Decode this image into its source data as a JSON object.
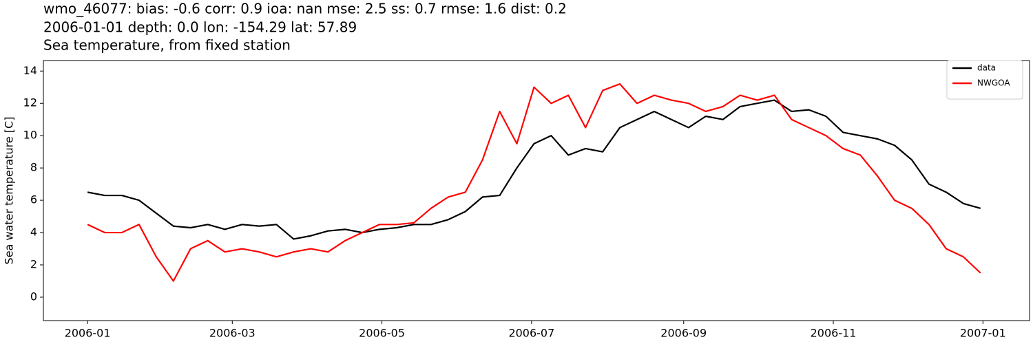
{
  "chart_data": {
    "type": "line",
    "title": "wmo_46077: bias: -0.6  corr: 0.9  ioa: nan  mse: 2.5  ss: 0.7  rmse: 1.6  dist: 0.2",
    "subtitle": "2006-01-01 depth: 0.0 lon: -154.29 lat: 57.89",
    "description": "Sea temperature, from fixed station",
    "y_label": "Sea water temperature [C]",
    "x": [
      0,
      7,
      14,
      21,
      28,
      35,
      42,
      49,
      56,
      63,
      70,
      77,
      84,
      91,
      98,
      105,
      112,
      119,
      126,
      133,
      140,
      147,
      154,
      161,
      168,
      175,
      182,
      189,
      196,
      203,
      210,
      217,
      224,
      231,
      238,
      245,
      252,
      259,
      266,
      273,
      280,
      287,
      294,
      301,
      308,
      315,
      322,
      329,
      336,
      343,
      350,
      357,
      364
    ],
    "series": [
      {
        "name": "data",
        "color": "#000000",
        "values": [
          6.5,
          6.3,
          6.3,
          6.0,
          5.2,
          4.4,
          4.3,
          4.5,
          4.2,
          4.5,
          4.4,
          4.5,
          3.6,
          3.8,
          4.1,
          4.2,
          4.0,
          4.2,
          4.3,
          4.5,
          4.5,
          4.8,
          5.3,
          6.2,
          6.3,
          8.0,
          9.5,
          10.0,
          8.8,
          9.2,
          9.0,
          10.5,
          11.0,
          11.5,
          11.0,
          10.5,
          11.2,
          11.0,
          11.8,
          12.0,
          12.2,
          11.5,
          11.6,
          11.2,
          10.2,
          10.0,
          9.8,
          9.4,
          8.5,
          7.0,
          6.5,
          5.8,
          5.5
        ]
      },
      {
        "name": "NWGOA",
        "color": "#ff0000",
        "values": [
          4.5,
          4.0,
          4.0,
          4.5,
          2.5,
          1.0,
          3.0,
          3.5,
          2.8,
          3.0,
          2.8,
          2.5,
          2.8,
          3.0,
          2.8,
          3.5,
          4.0,
          4.5,
          4.5,
          4.6,
          5.5,
          6.2,
          6.5,
          8.5,
          11.5,
          9.5,
          13.0,
          12.0,
          12.5,
          10.5,
          12.8,
          13.2,
          12.0,
          12.5,
          12.2,
          12.0,
          11.5,
          11.8,
          12.5,
          12.2,
          12.5,
          11.0,
          10.5,
          10.0,
          9.2,
          8.8,
          7.5,
          6.0,
          5.5,
          4.5,
          3.0,
          2.5,
          1.5
        ]
      }
    ],
    "xlim": [
      -18,
      384
    ],
    "xticks": [
      {
        "value": 0,
        "label": "2006-01"
      },
      {
        "value": 59,
        "label": "2006-03"
      },
      {
        "value": 120,
        "label": "2006-05"
      },
      {
        "value": 181,
        "label": "2006-07"
      },
      {
        "value": 243,
        "label": "2006-09"
      },
      {
        "value": 304,
        "label": "2006-11"
      },
      {
        "value": 365,
        "label": "2007-01"
      }
    ],
    "ylim": [
      -1.45,
      14.65
    ],
    "yticks": [
      0,
      2,
      4,
      6,
      8,
      10,
      12,
      14
    ],
    "grid": false,
    "legend": "upper right"
  }
}
